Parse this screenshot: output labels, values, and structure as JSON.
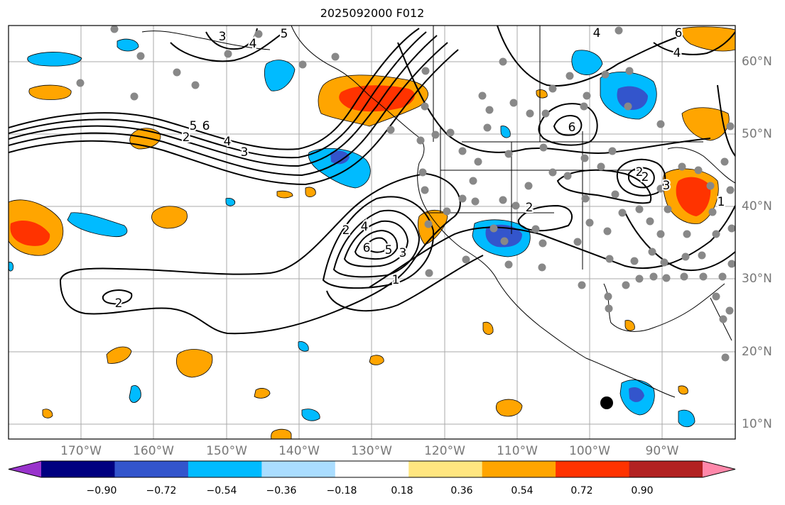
{
  "title": "2025092000 F012",
  "lon_labels": [
    "170°W",
    "160°W",
    "150°W",
    "140°W",
    "130°W",
    "120°W",
    "110°W",
    "100°W",
    "90°W"
  ],
  "lat_labels": [
    "60°N",
    "50°N",
    "40°N",
    "30°N",
    "20°N",
    "10°N"
  ],
  "contour_labels": [
    "3",
    "4",
    "5",
    "5",
    "6",
    "4",
    "3",
    "2",
    "2",
    "4",
    "6",
    "5",
    "3",
    "2",
    "1",
    "2",
    "1",
    "2",
    "3",
    "4",
    "6",
    "4",
    "6",
    "2"
  ],
  "colorbar": {
    "tick_labels": [
      "−0.90",
      "−0.72",
      "−0.54",
      "−0.36",
      "−0.18",
      "0.18",
      "0.36",
      "0.54",
      "0.72",
      "0.90"
    ],
    "colors": [
      "#9933cc",
      "#000080",
      "#3355cc",
      "#00bbff",
      "#aaddff",
      "#ffffff",
      "#ffe680",
      "#ffa500",
      "#ff3300",
      "#b22222",
      "#ff88aa"
    ]
  }
}
